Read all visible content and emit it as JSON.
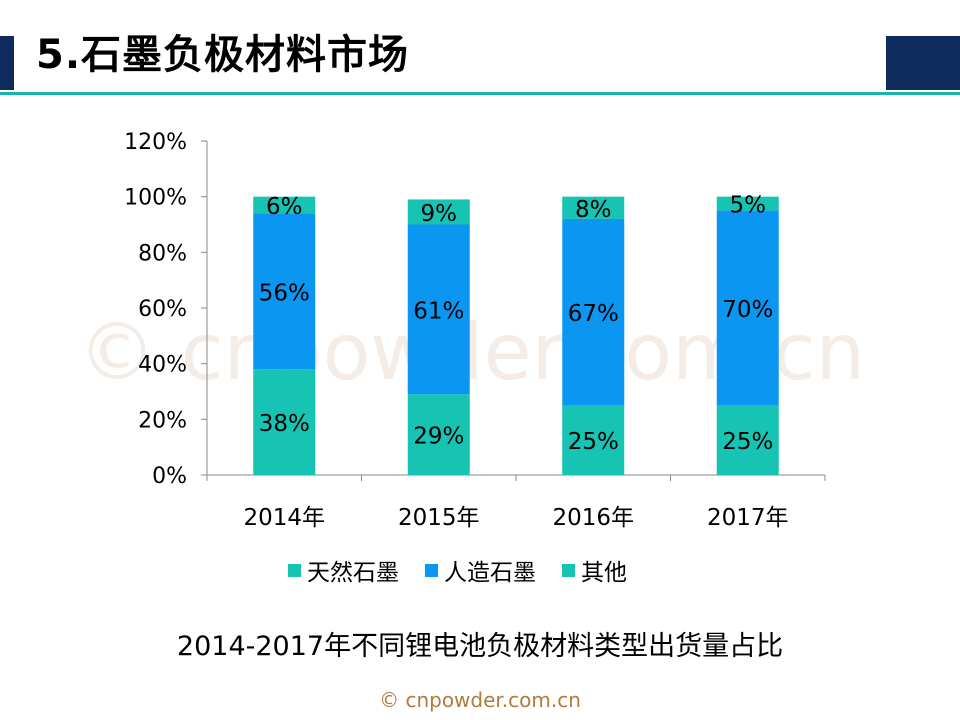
{
  "slide": {
    "title": "5.石墨负极材料市场",
    "watermark": "© cnpowder.com.cn",
    "caption": "2014-2017年不同锂电池负极材料类型出货量占比",
    "footer": "© cnpowder.com.cn"
  },
  "colors": {
    "accent_dark": "#0f2a5c",
    "rule": "#17b3b0",
    "natural_graphite": "#17c3b2",
    "artificial_graphite": "#0b96f1",
    "other": "#17c3b2"
  },
  "chart_data": {
    "type": "bar",
    "stacked": true,
    "categories": [
      "2014年",
      "2015年",
      "2016年",
      "2017年"
    ],
    "series": [
      {
        "name": "天然石墨",
        "values": [
          38,
          29,
          25,
          25
        ],
        "labels": [
          "38%",
          "29%",
          "25%",
          "25%"
        ]
      },
      {
        "name": "人造石墨",
        "values": [
          56,
          61,
          67,
          70
        ],
        "labels": [
          "56%",
          "61%",
          "67%",
          "70%"
        ]
      },
      {
        "name": "其他",
        "values": [
          6,
          9,
          8,
          5
        ],
        "labels": [
          "6%",
          "9%",
          "8%",
          "5%"
        ]
      }
    ],
    "yticks": [
      "0%",
      "20%",
      "40%",
      "60%",
      "80%",
      "100%",
      "120%"
    ],
    "ylim": [
      0,
      120
    ],
    "grid": false,
    "legend_position": "bottom"
  }
}
